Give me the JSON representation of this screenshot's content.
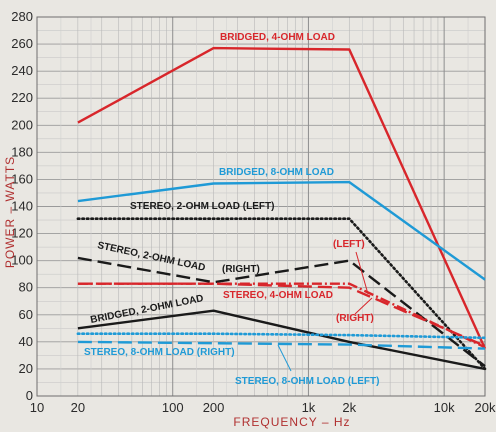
{
  "chart_data": {
    "type": "line",
    "xlabel": "FREQUENCY – Hz",
    "ylabel": "POWER – WATTS",
    "xscale": "log",
    "xlim": [
      10,
      20000
    ],
    "ylim": [
      0,
      280
    ],
    "y_ticks": [
      0,
      20,
      40,
      60,
      80,
      100,
      120,
      140,
      160,
      180,
      200,
      220,
      240,
      260,
      280
    ],
    "x_ticks": [
      {
        "value": 10,
        "label": "10"
      },
      {
        "value": 20,
        "label": "20"
      },
      {
        "value": 100,
        "label": "100"
      },
      {
        "value": 200,
        "label": "200"
      },
      {
        "value": 1000,
        "label": "1k"
      },
      {
        "value": 2000,
        "label": "2k"
      },
      {
        "value": 10000,
        "label": "10k"
      },
      {
        "value": 20000,
        "label": "20k"
      }
    ],
    "grid": true,
    "series": [
      {
        "name": "BRIDGED, 4-OHM LOAD",
        "color": "#d8262b",
        "style": "solid",
        "x": [
          20,
          200,
          2000,
          20000
        ],
        "y": [
          202,
          257,
          256,
          35
        ]
      },
      {
        "name": "BRIDGED, 8-OHM LOAD",
        "color": "#1f9ad6",
        "style": "solid",
        "x": [
          20,
          200,
          2000,
          20000
        ],
        "y": [
          144,
          157,
          158,
          86
        ]
      },
      {
        "name": "STEREO, 2-OHM LOAD (LEFT)",
        "color": "#1a1a1a",
        "style": "dotted",
        "x": [
          20,
          200,
          2000,
          20000
        ],
        "y": [
          131,
          131,
          131,
          20
        ]
      },
      {
        "name": "STEREO, 2-OHM LOAD (RIGHT)",
        "color": "#1a1a1a",
        "style": "dashed",
        "x": [
          20,
          200,
          2000,
          20000
        ],
        "y": [
          102,
          84,
          100,
          22
        ]
      },
      {
        "name": "STEREO, 4-OHM LOAD",
        "label_left": "(LEFT)",
        "label_right": "(RIGHT)",
        "color": "#d8262b",
        "style": "dashdot",
        "x": [
          20,
          200,
          2000,
          20000
        ],
        "y": [
          83,
          83,
          83,
          36
        ]
      },
      {
        "name": "STEREO, 4-OHM LOAD (RIGHT)",
        "color": "#d8262b",
        "style": "dashed",
        "x": [
          20,
          200,
          2000,
          20000
        ],
        "y": [
          83,
          83,
          80,
          37
        ]
      },
      {
        "name": "BRIDGED, 2-OHM LOAD",
        "color": "#1a1a1a",
        "style": "solid",
        "x": [
          20,
          200,
          2000,
          20000
        ],
        "y": [
          50,
          63,
          40,
          20
        ]
      },
      {
        "name": "STEREO, 8-OHM LOAD (LEFT)",
        "color": "#1f9ad6",
        "style": "dotted",
        "x": [
          20,
          200,
          2000,
          20000
        ],
        "y": [
          46,
          46,
          45,
          43
        ]
      },
      {
        "name": "STEREO, 8-OHM LOAD (RIGHT)",
        "color": "#1f9ad6",
        "style": "dashed",
        "x": [
          20,
          200,
          2000,
          20000
        ],
        "y": [
          40,
          39,
          38,
          35
        ]
      }
    ],
    "annotations": [
      {
        "text": "BRIDGED, 4-OHM LOAD",
        "color": "#d8262b"
      },
      {
        "text": "BRIDGED, 8-OHM LOAD",
        "color": "#1f9ad6"
      },
      {
        "text": "STEREO, 2-OHM LOAD (LEFT)",
        "color": "#1a1a1a"
      },
      {
        "text": "STEREO, 2-OHM LOAD",
        "color": "#1a1a1a"
      },
      {
        "text": "(RIGHT)",
        "color": "#1a1a1a"
      },
      {
        "text": "(LEFT)",
        "color": "#d8262b"
      },
      {
        "text": "STEREO, 4-OHM LOAD",
        "color": "#d8262b"
      },
      {
        "text": "(RIGHT)",
        "color": "#d8262b"
      },
      {
        "text": "BRIDGED, 2-OHM LOAD",
        "color": "#1a1a1a"
      },
      {
        "text": "STEREO, 8-OHM LOAD (RIGHT)",
        "color": "#1f9ad6"
      },
      {
        "text": "STEREO, 8-OHM LOAD (LEFT)",
        "color": "#1f9ad6"
      }
    ]
  }
}
